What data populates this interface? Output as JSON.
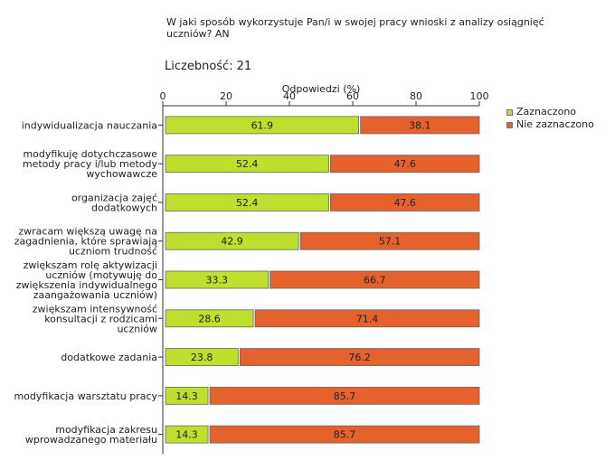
{
  "title": "W jaki sposób wykorzystuje Pan/i w swojej pracy wnioski z analizy osiągnięć uczniów? AN",
  "count_label": "Liczebność:",
  "count_value": "21",
  "chart_data": {
    "type": "bar",
    "orientation": "horizontal",
    "stacked": true,
    "xlabel": "Odpowiedzi (%)",
    "xlim": [
      0,
      100
    ],
    "xticks": [
      0,
      20,
      40,
      60,
      80,
      100
    ],
    "legend_position": "top-right",
    "categories": [
      "indywidualizacja nauczania",
      "modyfikuję dotychczasowe metody pracy i/lub metody wychowawcze",
      "organizacja zajęć dodatkowych",
      "zwracam większą uwagę na zagadnienia, które sprawiają uczniom trudność",
      "zwiększam rolę aktywizacji uczniów (motywuję do zwiększenia indywidualnego zaangażowania uczniów)",
      "zwiększam intensywność konsultacji z rodzicami uczniów",
      "dodatkowe zadania",
      "modyfikacja warsztatu pracy",
      "modyfikacja zakresu wprowadzanego materiału"
    ],
    "category_lines": [
      [
        "indywidualizacja nauczania"
      ],
      [
        "modyfikuję dotychczasowe",
        "metody pracy i/lub metody",
        "wychowawcze"
      ],
      [
        "organizacja zajęć",
        "dodatkowych"
      ],
      [
        "zwracam większą uwagę na",
        "zagadnienia, które sprawiają",
        "uczniom trudność"
      ],
      [
        "zwiększam rolę aktywizacji",
        "uczniów (motywuję do",
        "zwiększenia indywidualnego",
        "zaangażowania uczniów)"
      ],
      [
        "zwiększam intensywność",
        "konsultacji z rodzicami",
        "uczniów"
      ],
      [
        "dodatkowe zadania"
      ],
      [
        "modyfikacja warsztatu pracy"
      ],
      [
        "modyfikacja zakresu",
        "wprowadzanego materiału"
      ]
    ],
    "series": [
      {
        "name": "Zaznaczono",
        "color": "#bfdf2f",
        "values": [
          61.9,
          52.4,
          52.4,
          42.9,
          33.3,
          28.6,
          23.8,
          14.3,
          14.3
        ],
        "labels": [
          "61.9",
          "52.4",
          "52.4",
          "42.9",
          "33.3",
          "28.6",
          "23.8",
          "14.3",
          "14.3"
        ]
      },
      {
        "name": "Nie zaznaczono",
        "color": "#e5622d",
        "values": [
          38.1,
          47.6,
          47.6,
          57.1,
          66.7,
          71.4,
          76.2,
          85.7,
          85.7
        ],
        "labels": [
          "38.1",
          "47.6",
          "47.6",
          "57.1",
          "66.7",
          "71.4",
          "76.2",
          "85.7",
          "85.7"
        ]
      }
    ]
  }
}
